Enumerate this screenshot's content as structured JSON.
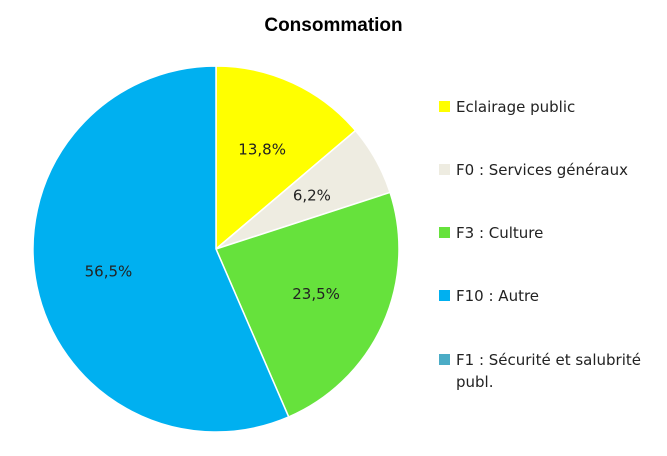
{
  "chart_data": {
    "type": "pie",
    "title": "Consommation",
    "start_angle_deg": 0,
    "direction": "clockwise",
    "legend_position": "right",
    "slices": [
      {
        "name": "Eclairage public",
        "value": 13.8,
        "label": "13,8%",
        "color": "#ffff00"
      },
      {
        "name": "F0 : Services généraux",
        "value": 6.2,
        "label": "6,2%",
        "color": "#eeece1"
      },
      {
        "name": "F3 : Culture",
        "value": 23.5,
        "label": "23,5%",
        "color": "#66e23c"
      },
      {
        "name": "F10 : Autre",
        "value": 56.5,
        "label": "56,5%",
        "color": "#00b0f0"
      },
      {
        "name": "F1 : Sécurité et salubrité publ.",
        "value": 0,
        "label": "",
        "color": "#4bacc6"
      }
    ]
  }
}
